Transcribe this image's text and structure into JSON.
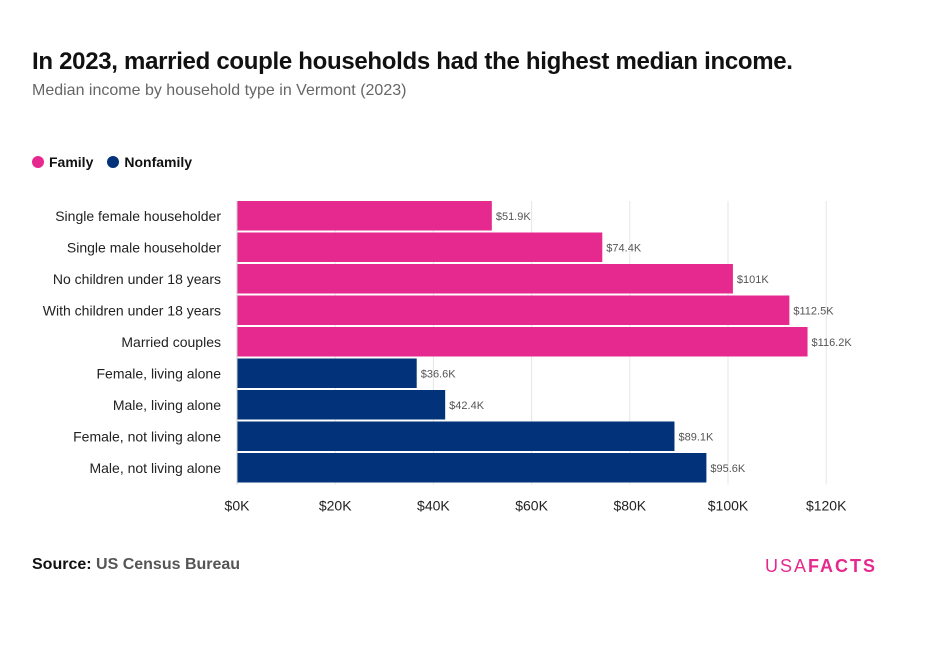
{
  "header": {
    "title": "In 2023, married couple households had the highest median income.",
    "subtitle": "Median income by household type in Vermont (2023)"
  },
  "legend": [
    {
      "label": "Family",
      "color": "#e6298f"
    },
    {
      "label": "Nonfamily",
      "color": "#02337a"
    }
  ],
  "footer": {
    "source_label": "Source:",
    "source_value": "US Census Bureau",
    "logo_usa": "USA",
    "logo_facts": "FACTS"
  },
  "chart_data": {
    "type": "bar",
    "orientation": "horizontal",
    "categories": [
      "Single female householder",
      "Single male householder",
      "No children under 18 years",
      "With children under 18 years",
      "Married couples",
      "Female, living alone",
      "Male, living alone",
      "Female, not living alone",
      "Male, not living alone"
    ],
    "values": [
      51900,
      74400,
      101000,
      112500,
      116200,
      36600,
      42400,
      89100,
      95600
    ],
    "value_labels": [
      "$51.9K",
      "$74.4K",
      "$101K",
      "$112.5K",
      "$116.2K",
      "$36.6K",
      "$42.4K",
      "$89.1K",
      "$95.6K"
    ],
    "groups": [
      "Family",
      "Family",
      "Family",
      "Family",
      "Family",
      "Nonfamily",
      "Nonfamily",
      "Nonfamily",
      "Nonfamily"
    ],
    "xlim": [
      0,
      120000
    ],
    "xticks": [
      0,
      20000,
      40000,
      60000,
      80000,
      100000,
      120000
    ],
    "xtick_labels": [
      "$0K",
      "$20K",
      "$40K",
      "$60K",
      "$80K",
      "$100K",
      "$120K"
    ],
    "grid": true,
    "legend_position": "top-left",
    "colors": {
      "Family": "#e6298f",
      "Nonfamily": "#02337a"
    }
  }
}
